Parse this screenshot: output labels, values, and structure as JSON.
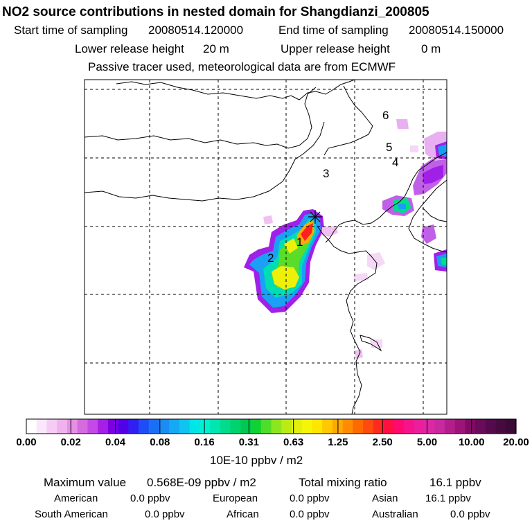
{
  "header": {
    "title": "NO2 source contributions in nested domain for Shangdianzi_200805",
    "start_label": "Start time of sampling",
    "start_value": "20080514.120000",
    "end_label": "End time of sampling",
    "end_value": "20080514.150000",
    "lower_label": "Lower release height",
    "lower_value": "20 m",
    "upper_label": "Upper release height",
    "upper_value": "0 m",
    "note": "Passive tracer used, meteorological data are from ECMWF"
  },
  "map": {
    "receptor_marker": "star-icon",
    "source_labels": [
      "1",
      "2",
      "3",
      "4",
      "5",
      "6"
    ]
  },
  "colorbar": {
    "unit": "10E-10 ppbv / m2",
    "ticks": [
      "0.00",
      "0.02",
      "0.04",
      "0.08",
      "0.16",
      "0.31",
      "0.63",
      "1.25",
      "2.50",
      "5.00",
      "10.00",
      "20.00"
    ],
    "colors": [
      "#ffffff",
      "#fbe6fb",
      "#f5ccf5",
      "#efb2ef",
      "#e58fe5",
      "#d66bdf",
      "#c449e6",
      "#a51fe6",
      "#7a00e0",
      "#5200e6",
      "#2f1ff0",
      "#1f4df5",
      "#1a70f5",
      "#1a8cf5",
      "#14a8f5",
      "#0fc5f0",
      "#00e6e6",
      "#00f0d4",
      "#00e6b0",
      "#00dc8c",
      "#00d26e",
      "#00c850",
      "#10d232",
      "#50dc28",
      "#8ce61e",
      "#bbeb14",
      "#e1ef0f",
      "#f5f50a",
      "#ffe600",
      "#ffc800",
      "#ffaa00",
      "#ff8c00",
      "#ff6a00",
      "#ff4a10",
      "#ff2a20",
      "#ff1040",
      "#ff0a6e",
      "#f5148c",
      "#eb1e9b",
      "#dc28a5",
      "#c828a0",
      "#b41e8c",
      "#9c1478",
      "#820a64",
      "#690a5a",
      "#550a4b",
      "#460a40",
      "#3c0a37"
    ]
  },
  "footer": {
    "max_label": "Maximum value",
    "max_value": "0.568E-09 ppbv / m2",
    "total_label": "Total mixing ratio",
    "total_value": "16.1 ppbv",
    "regions": [
      {
        "name": "American",
        "value": "0.0 ppbv"
      },
      {
        "name": "European",
        "value": "0.0 ppbv"
      },
      {
        "name": "Asian",
        "value": "16.1 ppbv"
      },
      {
        "name": "South American",
        "value": "0.0 ppbv"
      },
      {
        "name": "African",
        "value": "0.0 ppbv"
      },
      {
        "name": "Australian",
        "value": "0.0 ppbv"
      }
    ]
  }
}
